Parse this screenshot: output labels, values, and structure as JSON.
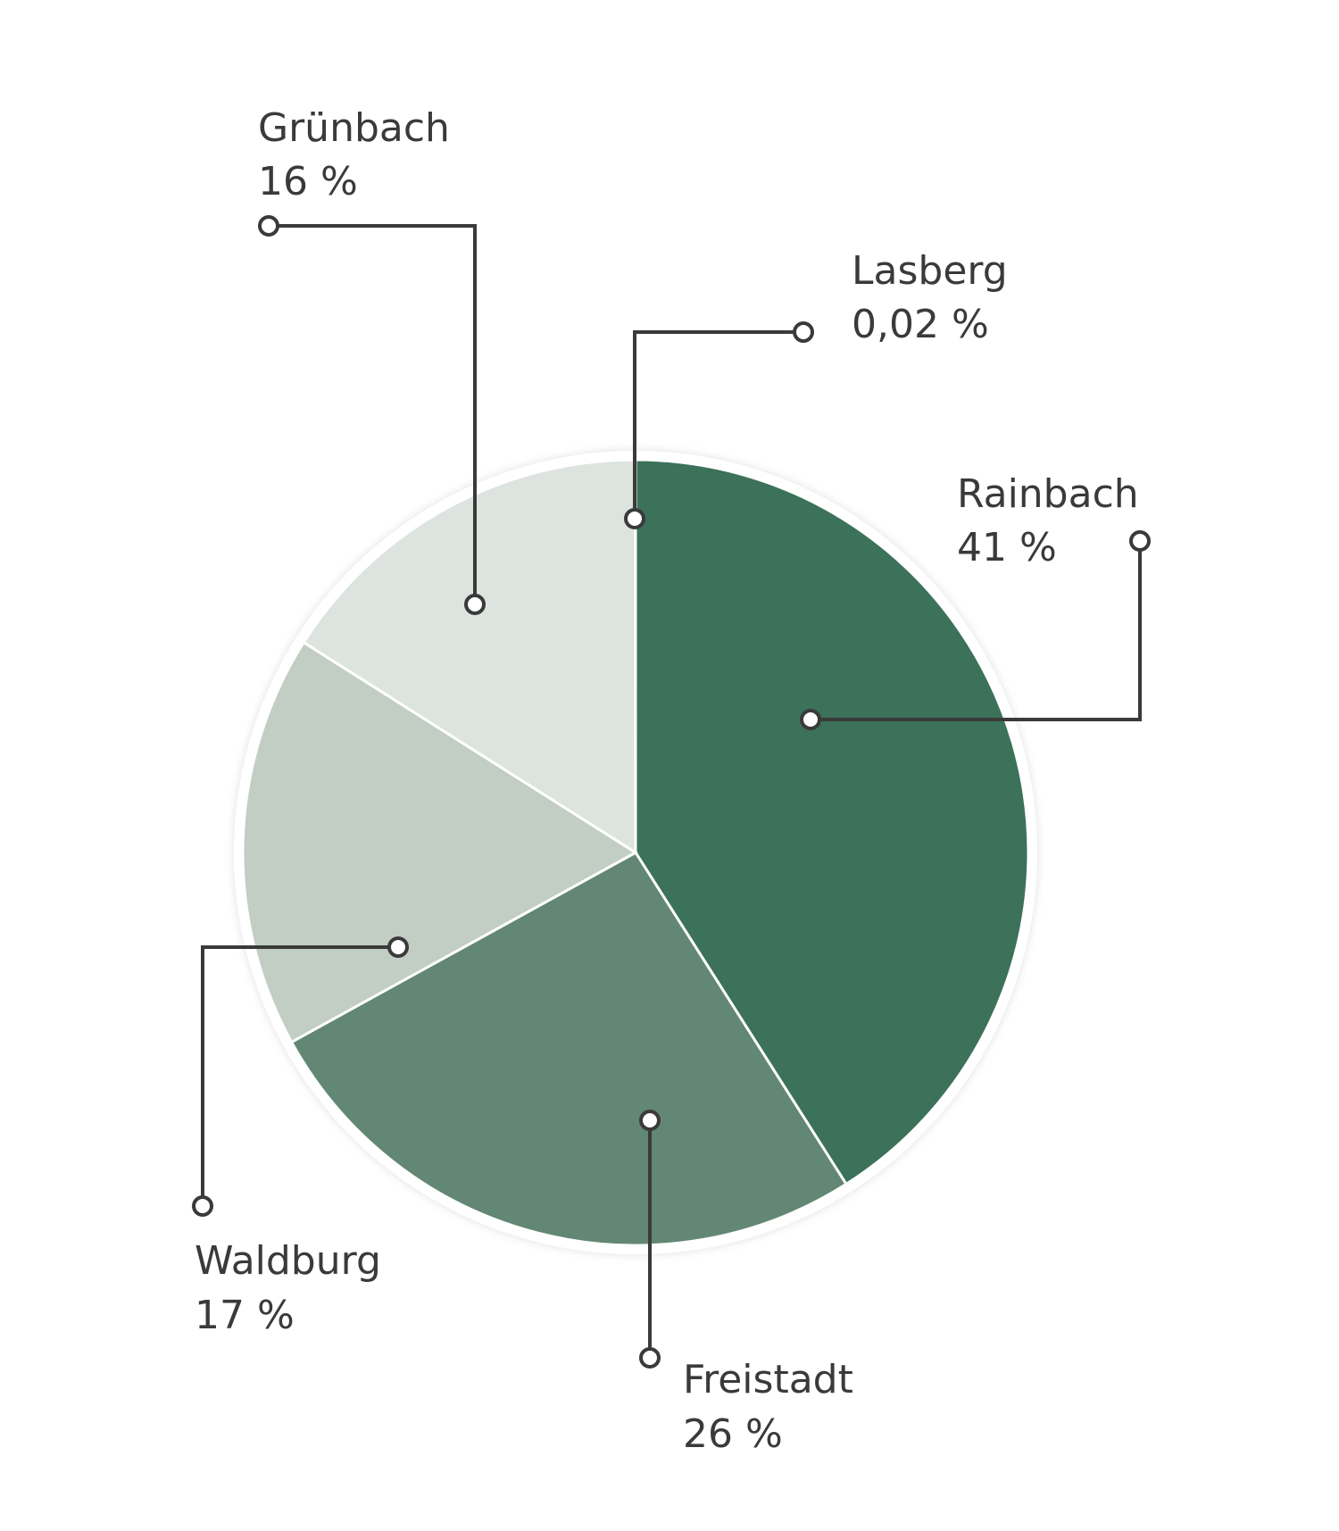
{
  "chart_data": {
    "type": "pie",
    "title": "",
    "start_angle_deg": 0,
    "direction": "clockwise",
    "slices": [
      {
        "label": "Rainbach",
        "value_label": "41 %",
        "value": 41,
        "color": "#3c715a"
      },
      {
        "label": "Freistadt",
        "value_label": "26 %",
        "value": 26,
        "color": "#628774"
      },
      {
        "label": "Waldburg",
        "value_label": "17 %",
        "value": 17,
        "color": "#c2cdc4"
      },
      {
        "label": "Grünbach",
        "value_label": "16 %",
        "value": 16,
        "color": "#dde4e0"
      },
      {
        "label": "Lasberg",
        "value_label": "0,02 %",
        "value": 0.02,
        "color": "#ffffff"
      }
    ],
    "legend": "none",
    "annotations": "callout leader lines with circular end markers"
  }
}
